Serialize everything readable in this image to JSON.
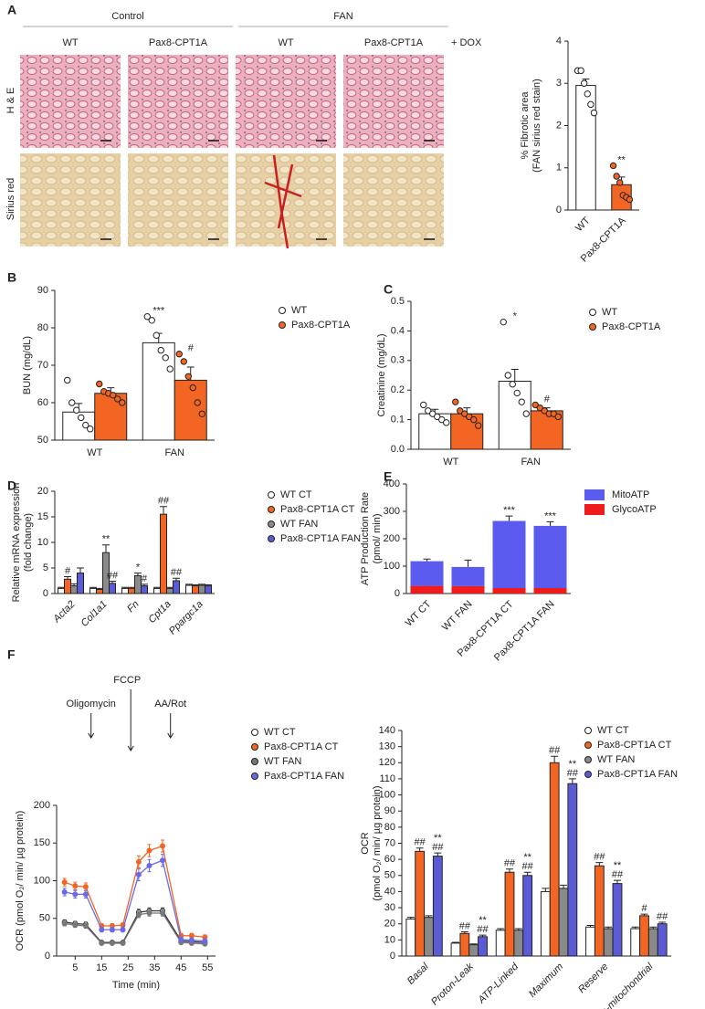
{
  "panel_labels": [
    "A",
    "B",
    "C",
    "D",
    "E",
    "F"
  ],
  "micrographs": {
    "groups": [
      "Control",
      "FAN"
    ],
    "columns": [
      "WT",
      "Pax8-CPT1A",
      "WT",
      "Pax8-CPT1A"
    ],
    "treatment": "+ DOX",
    "rows": [
      "H & E",
      "Sirius red"
    ]
  },
  "chart_data": [
    {
      "type": "bar",
      "ylabel": [
        "% Fibrotic area",
        "(FAN sirius red stain)"
      ],
      "categories": [
        "WT",
        "Pax8-CPT1A"
      ],
      "values": [
        2.95,
        0.6
      ],
      "errors": [
        0.15,
        0.18
      ],
      "colors": [
        "#ffffff",
        "#f26522"
      ],
      "points": [
        [
          3.3,
          3.3,
          3.0,
          2.75,
          2.5,
          2.3
        ],
        [
          1.05,
          0.8,
          0.65,
          0.35,
          0.3,
          0.25
        ]
      ],
      "annotations": [
        null,
        "**"
      ],
      "ylim": [
        0,
        4
      ],
      "yticks": [
        0,
        1,
        2,
        3,
        4
      ]
    },
    {
      "type": "bar",
      "ylabel": [
        "BUN (mg/dL)"
      ],
      "categories": [
        "WT",
        "FAN"
      ],
      "ylim": [
        50,
        90
      ],
      "yticks": [
        50,
        60,
        70,
        80,
        90
      ],
      "series": [
        {
          "name": "WT",
          "color": "#ffffff",
          "values": [
            57.5,
            76
          ],
          "errors": [
            2.3,
            2.5
          ],
          "points": [
            [
              66,
              60,
              58,
              56,
              54,
              53
            ],
            [
              83,
              82,
              78,
              74,
              72,
              69
            ]
          ],
          "annotations": [
            null,
            "***"
          ]
        },
        {
          "name": "Pax8-CPT1A",
          "color": "#f26522",
          "values": [
            62.5,
            66
          ],
          "errors": [
            1.5,
            3.5
          ],
          "points": [
            [
              65,
              63,
              62.5,
              62,
              61,
              60
            ],
            [
              73,
              71,
              67,
              64,
              60,
              57
            ]
          ],
          "annotations": [
            null,
            "#"
          ]
        }
      ]
    },
    {
      "type": "bar",
      "ylabel": [
        "Creatinine (mg/dL)"
      ],
      "categories": [
        "WT",
        "FAN"
      ],
      "ylim": [
        0,
        0.5
      ],
      "yticks": [
        {
          "value": 0,
          "label": "0.0"
        },
        0.1,
        0.2,
        0.3,
        0.4,
        0.5
      ],
      "series": [
        {
          "name": "WT",
          "color": "#ffffff",
          "values": [
            0.12,
            0.23
          ],
          "errors": [
            0.015,
            0.04
          ],
          "points": [
            [
              0.15,
              0.13,
              0.12,
              0.11,
              0.1,
              0.09
            ],
            [
              0.43,
              0.25,
              0.22,
              0.19,
              0.16,
              0.12
            ]
          ],
          "annotations": [
            null,
            "*"
          ]
        },
        {
          "name": "Pax8-CPT1A",
          "color": "#f26522",
          "values": [
            0.12,
            0.13
          ],
          "errors": [
            0.02,
            0.01
          ],
          "points": [
            [
              0.16,
              0.13,
              0.12,
              0.11,
              0.1,
              0.08
            ],
            [
              0.15,
              0.14,
              0.13,
              0.12,
              0.12,
              0.11
            ]
          ],
          "annotations": [
            null,
            "#"
          ]
        }
      ]
    },
    {
      "type": "bar",
      "ylabel": [
        "Relative mRNA expression",
        "(fold change)"
      ],
      "categories": [
        "Acta2",
        "Col1a1",
        "Fn",
        "Cpt1a",
        "Ppargc1a"
      ],
      "ylim": [
        0,
        20
      ],
      "yticks": [
        0,
        5,
        10,
        15,
        20
      ],
      "series": [
        {
          "name": "WT CT",
          "color": "#ffffff",
          "values": [
            1,
            1,
            1,
            1,
            1.6
          ],
          "errors": [
            0.2,
            0.2,
            0.2,
            0.2,
            0.2
          ],
          "annotations": [
            null,
            null,
            null,
            null,
            null
          ]
        },
        {
          "name": "Pax8-CPT1A CT",
          "color": "#f26522",
          "values": [
            2.8,
            0.8,
            1,
            15.5,
            1.5
          ],
          "errors": [
            0.5,
            0.2,
            0.2,
            1.5,
            0.2
          ],
          "annotations": [
            "#",
            null,
            null,
            "##",
            null
          ]
        },
        {
          "name": "WT FAN",
          "color": "#8a8a8a",
          "values": [
            1.5,
            8,
            3.5,
            1,
            1.6
          ],
          "errors": [
            0.4,
            1.5,
            0.5,
            0.2,
            0.2
          ],
          "annotations": [
            null,
            "**",
            "*",
            null,
            null
          ]
        },
        {
          "name": "Pax8-CPT1A FAN",
          "color": "#5b5bd6",
          "values": [
            4,
            2,
            1.5,
            2.5,
            1.5
          ],
          "errors": [
            1,
            0.4,
            0.3,
            0.5,
            0.2
          ],
          "annotations": [
            null,
            "##",
            "#",
            "##",
            null
          ]
        }
      ]
    },
    {
      "type": "bar",
      "stacked": true,
      "ylabel": [
        "ATP Production Rate",
        "(pmol/ min)"
      ],
      "categories": [
        "WT CT",
        "WT FAN",
        "Pax8-CPT1A CT",
        "Pax8-CPT1A FAN"
      ],
      "ylim": [
        0,
        400
      ],
      "yticks": [
        0,
        100,
        200,
        300,
        400
      ],
      "annotations": [
        null,
        null,
        "***",
        "***"
      ],
      "series": [
        {
          "name": "MitoATP",
          "color": "#5b5bf0",
          "values": [
            90,
            70,
            245,
            227
          ],
          "errors": [
            8,
            25,
            18,
            15
          ]
        },
        {
          "name": "GlycoATP",
          "color": "#ee1c1c",
          "values": [
            28,
            27,
            20,
            20
          ],
          "errors": [
            7,
            8,
            5,
            3
          ]
        }
      ]
    },
    {
      "type": "line",
      "ylabel": [
        "OCR (pmol O₂/ min/ µg protein)"
      ],
      "xlabel": "Time (min)",
      "x": [
        1,
        5,
        9,
        15,
        19,
        23,
        29,
        33,
        38,
        45,
        49,
        54
      ],
      "xlim": [
        -2,
        58
      ],
      "xticks": [
        5,
        15,
        25,
        35,
        45,
        55
      ],
      "ylim": [
        0,
        200
      ],
      "yticks": [
        0,
        50,
        100,
        150,
        200
      ],
      "injections": [
        {
          "label": "Oligomycin",
          "x": 11
        },
        {
          "label": "FCCP",
          "x": 26
        },
        {
          "label": "AA/Rot",
          "x": 41
        }
      ],
      "series": [
        {
          "name": "WT CT",
          "color": "#333333",
          "marker": "#ffffff",
          "values": [
            45,
            43,
            42,
            18,
            18,
            18,
            58,
            60,
            60,
            20,
            19,
            18
          ],
          "errors": [
            3,
            3,
            3,
            2,
            2,
            2,
            4,
            4,
            4,
            2,
            2,
            2
          ]
        },
        {
          "name": "Pax8-CPT1A CT",
          "color": "#f26522",
          "marker": "#f26522",
          "values": [
            98,
            93,
            92,
            40,
            40,
            41,
            125,
            140,
            146,
            27,
            27,
            25
          ],
          "errors": [
            5,
            5,
            5,
            3,
            3,
            3,
            8,
            8,
            8,
            3,
            3,
            3
          ]
        },
        {
          "name": "WT FAN",
          "color": "#777777",
          "marker": "#777777",
          "values": [
            43,
            41,
            40,
            17,
            17,
            17,
            55,
            57,
            57,
            18,
            17,
            16
          ],
          "errors": [
            3,
            3,
            3,
            2,
            2,
            2,
            4,
            4,
            4,
            2,
            2,
            2
          ]
        },
        {
          "name": "Pax8-CPT1A FAN",
          "color": "#6a6ae8",
          "marker": "#6a6ae8",
          "values": [
            85,
            82,
            82,
            35,
            35,
            35,
            108,
            120,
            127,
            22,
            21,
            20
          ],
          "errors": [
            5,
            5,
            5,
            3,
            3,
            3,
            8,
            8,
            8,
            3,
            3,
            3
          ]
        }
      ]
    },
    {
      "type": "bar",
      "ylabel": [
        "OCR",
        "(pmol O₂/ min/ µg protein)"
      ],
      "categories": [
        "Basal",
        "Proton-Leak",
        "ATP-Linked",
        "Maximum",
        "Reserve",
        "Non-mitochondrial"
      ],
      "ylim": [
        0,
        140
      ],
      "yticks": [
        0,
        10,
        20,
        30,
        40,
        50,
        60,
        70,
        80,
        90,
        100,
        110,
        120,
        130,
        140
      ],
      "series": [
        {
          "name": "WT CT",
          "color": "#ffffff",
          "values": [
            23,
            8,
            16,
            40,
            18,
            17
          ],
          "errors": [
            1,
            0.5,
            1,
            2,
            1,
            1
          ],
          "annotations": [
            null,
            null,
            null,
            null,
            null,
            null
          ]
        },
        {
          "name": "Pax8-CPT1A CT",
          "color": "#f26522",
          "values": [
            65,
            14,
            52,
            120,
            56,
            25
          ],
          "errors": [
            2,
            1,
            2,
            4,
            2,
            1
          ],
          "annotations": [
            "##",
            "##",
            "##",
            "##",
            "##",
            "#"
          ]
        },
        {
          "name": "WT FAN",
          "color": "#8a8a8a",
          "values": [
            24,
            7,
            16,
            42,
            17,
            17
          ],
          "errors": [
            1,
            0.5,
            1,
            2,
            1,
            1
          ],
          "annotations": [
            null,
            null,
            null,
            null,
            null,
            null
          ]
        },
        {
          "name": "Pax8-CPT1A FAN",
          "color": "#5b5bd6",
          "values": [
            62,
            12,
            50,
            107,
            45,
            20
          ],
          "errors": [
            2,
            1,
            2,
            3,
            2,
            1
          ],
          "annotations": [
            [
              "##",
              "**"
            ],
            [
              "##",
              "**"
            ],
            [
              "##",
              "**"
            ],
            [
              "##",
              "**"
            ],
            [
              "##",
              "**"
            ],
            "##"
          ]
        }
      ]
    }
  ]
}
